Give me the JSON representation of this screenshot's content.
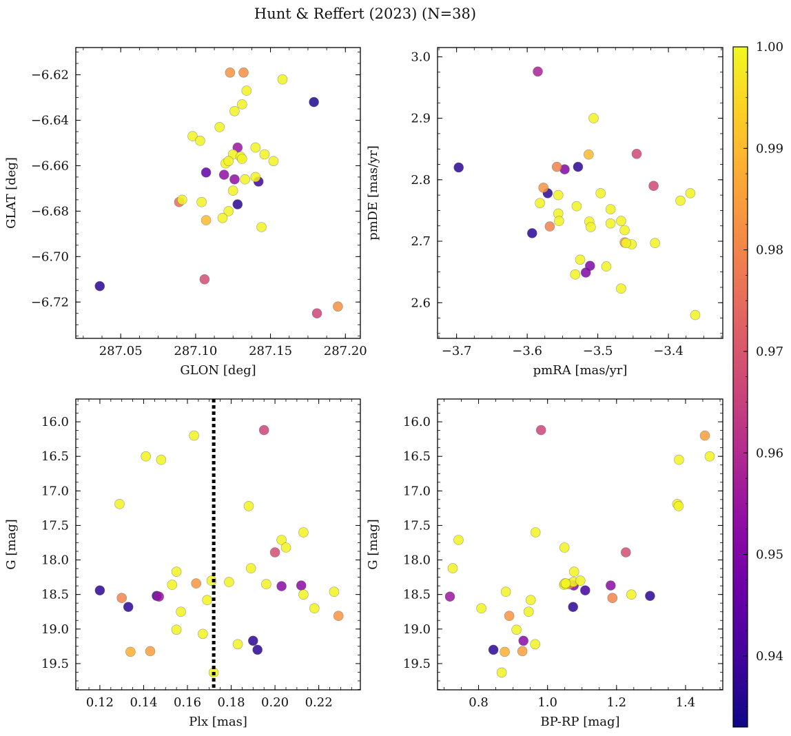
{
  "figure": {
    "title": "Hunt & Reffert (2023) (N=38)"
  },
  "colorbar": {
    "colormap": "plasma",
    "range": [
      0.933,
      1.0
    ],
    "tick_values": [
      0.94,
      0.95,
      0.96,
      0.97,
      0.98,
      0.99,
      1.0
    ],
    "tick_labels": [
      "0.94",
      "0.95",
      "0.96",
      "0.97",
      "0.98",
      "0.99",
      "1.00"
    ]
  },
  "chart_data": [
    {
      "id": "glon-glat",
      "type": "scatter",
      "title": "",
      "xlabel": "GLON [deg]",
      "ylabel": "GLAT [deg]",
      "xlim": [
        287.02,
        287.21
      ],
      "ylim": [
        -6.736,
        -6.608
      ],
      "inverted_y": false,
      "x_ticks": [
        287.05,
        287.1,
        287.15,
        287.2
      ],
      "x_tick_labels": [
        "287.05",
        "287.10",
        "287.15",
        "287.20"
      ],
      "y_ticks": [
        -6.72,
        -6.7,
        -6.68,
        -6.66,
        -6.64,
        -6.62
      ],
      "y_tick_labels": [
        "−6.72",
        "−6.70",
        "−6.68",
        "−6.66",
        "−6.64",
        "−6.62"
      ],
      "x": [
        287.123,
        287.132,
        287.134,
        287.158,
        287.179,
        287.131,
        287.126,
        287.116,
        287.098,
        287.103,
        287.128,
        287.14,
        287.125,
        287.13,
        287.146,
        287.152,
        287.12,
        287.122,
        287.107,
        287.119,
        287.126,
        287.133,
        287.14,
        287.142,
        287.125,
        287.091,
        287.089,
        287.104,
        287.128,
        287.122,
        287.118,
        287.107,
        287.144,
        287.036,
        287.106,
        287.181,
        287.195,
        287.131
      ],
      "y": [
        -6.619,
        -6.619,
        -6.627,
        -6.622,
        -6.632,
        -6.633,
        -6.636,
        -6.643,
        -6.647,
        -6.649,
        -6.652,
        -6.652,
        -6.655,
        -6.656,
        -6.655,
        -6.658,
        -6.659,
        -6.658,
        -6.663,
        -6.664,
        -6.666,
        -6.666,
        -6.665,
        -6.667,
        -6.671,
        -6.675,
        -6.676,
        -6.676,
        -6.677,
        -6.68,
        -6.683,
        -6.684,
        -6.687,
        -6.713,
        -6.71,
        -6.725,
        -6.722,
        -6.657
      ],
      "color_value": [
        0.983,
        0.982,
        0.999,
        0.999,
        0.935,
        0.999,
        0.999,
        0.999,
        0.999,
        0.999,
        0.955,
        0.999,
        0.999,
        0.999,
        0.999,
        0.999,
        0.999,
        0.999,
        0.945,
        0.953,
        0.953,
        0.999,
        0.999,
        0.94,
        0.999,
        0.999,
        0.975,
        0.999,
        0.937,
        0.999,
        0.999,
        0.99,
        0.999,
        0.937,
        0.968,
        0.966,
        0.982,
        0.999
      ],
      "reference_line": null
    },
    {
      "id": "pmra-pmde",
      "type": "scatter",
      "title": "",
      "xlabel": "pmRA [mas/yr]",
      "ylabel": "pmDE [mas/yr]",
      "xlim": [
        -3.727,
        -3.323
      ],
      "ylim": [
        2.542,
        3.015
      ],
      "inverted_y": false,
      "x_ticks": [
        -3.7,
        -3.6,
        -3.5,
        -3.4
      ],
      "x_tick_labels": [
        "−3.7",
        "−3.6",
        "−3.5",
        "−3.4"
      ],
      "y_ticks": [
        2.6,
        2.7,
        2.8,
        2.9,
        3.0
      ],
      "y_tick_labels": [
        "2.6",
        "2.7",
        "2.8",
        "2.9",
        "3.0"
      ],
      "x": [
        -3.585,
        -3.697,
        -3.506,
        -3.513,
        -3.445,
        -3.558,
        -3.547,
        -3.528,
        -3.577,
        -3.571,
        -3.421,
        -3.496,
        -3.383,
        -3.369,
        -3.582,
        -3.556,
        -3.53,
        -3.512,
        -3.482,
        -3.467,
        -3.556,
        -3.568,
        -3.51,
        -3.462,
        -3.593,
        -3.482,
        -3.462,
        -3.452,
        -3.419,
        -3.511,
        -3.525,
        -3.488,
        -3.517,
        -3.532,
        -3.467,
        -3.362,
        -3.555,
        -3.46
      ],
      "y": [
        2.976,
        2.82,
        2.9,
        2.841,
        2.842,
        2.821,
        2.817,
        2.821,
        2.787,
        2.778,
        2.79,
        2.778,
        2.766,
        2.778,
        2.762,
        2.775,
        2.757,
        2.732,
        2.752,
        2.733,
        2.745,
        2.724,
        2.723,
        2.718,
        2.713,
        2.729,
        2.698,
        2.695,
        2.697,
        2.66,
        2.67,
        2.659,
        2.649,
        2.646,
        2.623,
        2.58,
        2.733,
        2.697
      ],
      "color_value": [
        0.958,
        0.937,
        0.999,
        0.99,
        0.967,
        0.979,
        0.95,
        0.937,
        0.983,
        0.937,
        0.967,
        0.999,
        0.999,
        0.999,
        0.999,
        0.999,
        0.999,
        0.999,
        0.999,
        0.999,
        0.999,
        0.979,
        0.999,
        0.999,
        0.937,
        0.999,
        0.985,
        0.999,
        0.999,
        0.95,
        0.999,
        0.999,
        0.95,
        0.999,
        0.999,
        0.999,
        0.999,
        0.999
      ],
      "reference_line": null
    },
    {
      "id": "plx-g",
      "type": "scatter",
      "title": "",
      "xlabel": "Plx [mas]",
      "ylabel": "G [mag]",
      "xlim": [
        0.109,
        0.239
      ],
      "ylim": [
        19.88,
        15.67
      ],
      "inverted_y": true,
      "x_ticks": [
        0.12,
        0.14,
        0.16,
        0.18,
        0.2,
        0.22
      ],
      "x_tick_labels": [
        "0.12",
        "0.14",
        "0.16",
        "0.18",
        "0.20",
        "0.22"
      ],
      "y_ticks": [
        16.0,
        16.5,
        17.0,
        17.5,
        18.0,
        18.5,
        19.0,
        19.5
      ],
      "y_tick_labels": [
        "16.0",
        "16.5",
        "17.0",
        "17.5",
        "18.0",
        "18.5",
        "19.0",
        "19.5"
      ],
      "x": [
        0.163,
        0.195,
        0.141,
        0.148,
        0.129,
        0.188,
        0.213,
        0.203,
        0.205,
        0.2,
        0.155,
        0.189,
        0.153,
        0.164,
        0.171,
        0.179,
        0.196,
        0.203,
        0.212,
        0.227,
        0.12,
        0.13,
        0.146,
        0.147,
        0.213,
        0.169,
        0.133,
        0.157,
        0.218,
        0.229,
        0.155,
        0.167,
        0.183,
        0.19,
        0.192,
        0.134,
        0.143,
        0.172
      ],
      "y": [
        16.2,
        16.12,
        16.5,
        16.55,
        17.19,
        17.22,
        17.6,
        17.71,
        17.82,
        17.89,
        18.17,
        18.12,
        18.36,
        18.34,
        18.3,
        18.32,
        18.35,
        18.38,
        18.37,
        18.46,
        18.44,
        18.55,
        18.52,
        18.53,
        18.5,
        18.58,
        18.68,
        18.75,
        18.7,
        18.81,
        19.01,
        19.07,
        19.22,
        19.17,
        19.3,
        19.33,
        19.32,
        19.63
      ],
      "color_value": [
        0.999,
        0.966,
        0.999,
        0.999,
        0.999,
        0.999,
        0.999,
        0.999,
        0.999,
        0.968,
        0.999,
        0.999,
        0.999,
        0.983,
        0.999,
        0.999,
        0.999,
        0.952,
        0.952,
        0.999,
        0.937,
        0.98,
        0.94,
        0.955,
        0.999,
        0.999,
        0.937,
        0.999,
        0.999,
        0.983,
        0.999,
        0.999,
        0.999,
        0.937,
        0.937,
        0.988,
        0.985,
        0.999
      ],
      "reference_line": {
        "axis": "x",
        "value": 0.172,
        "style": "dotted"
      }
    },
    {
      "id": "bprp-g",
      "type": "scatter",
      "title": "",
      "xlabel": "BP-RP [mag]",
      "ylabel": "G [mag]",
      "xlim": [
        0.681,
        1.508
      ],
      "ylim": [
        19.88,
        15.67
      ],
      "inverted_y": true,
      "x_ticks": [
        0.8,
        1.0,
        1.2,
        1.4
      ],
      "x_tick_labels": [
        "0.8",
        "1.0",
        "1.2",
        "1.4"
      ],
      "y_ticks": [
        16.0,
        16.5,
        17.0,
        17.5,
        18.0,
        18.5,
        19.0,
        19.5
      ],
      "y_tick_labels": [
        "16.0",
        "16.5",
        "17.0",
        "17.5",
        "18.0",
        "18.5",
        "19.0",
        "19.5"
      ],
      "x": [
        0.981,
        1.456,
        1.47,
        1.381,
        1.376,
        1.38,
        0.742,
        0.965,
        1.227,
        1.049,
        0.725,
        1.077,
        1.075,
        1.095,
        1.048,
        1.05,
        1.063,
        1.076,
        1.109,
        1.183,
        1.297,
        1.243,
        1.188,
        0.717,
        0.879,
        0.951,
        0.808,
        1.074,
        0.889,
        0.91,
        0.945,
        0.964,
        0.93,
        0.843,
        0.876,
        0.927,
        0.867,
        1.053
      ],
      "y": [
        16.12,
        16.2,
        16.5,
        16.55,
        17.19,
        17.22,
        17.71,
        17.6,
        17.89,
        17.82,
        18.12,
        18.17,
        18.32,
        18.3,
        18.36,
        18.34,
        18.35,
        18.37,
        18.44,
        18.37,
        18.52,
        18.5,
        18.55,
        18.53,
        18.46,
        18.58,
        18.7,
        18.68,
        18.81,
        19.01,
        18.75,
        19.22,
        19.17,
        19.3,
        19.33,
        19.32,
        19.63,
        18.34
      ],
      "color_value": [
        0.966,
        0.985,
        0.999,
        0.999,
        0.999,
        0.999,
        0.999,
        0.999,
        0.968,
        0.999,
        0.999,
        0.999,
        0.999,
        0.999,
        0.999,
        0.999,
        0.98,
        0.952,
        0.94,
        0.952,
        0.937,
        0.999,
        0.98,
        0.955,
        0.999,
        0.999,
        0.999,
        0.937,
        0.983,
        0.999,
        0.999,
        0.999,
        0.952,
        0.937,
        0.988,
        0.985,
        0.999,
        0.999
      ],
      "reference_line": null
    }
  ]
}
